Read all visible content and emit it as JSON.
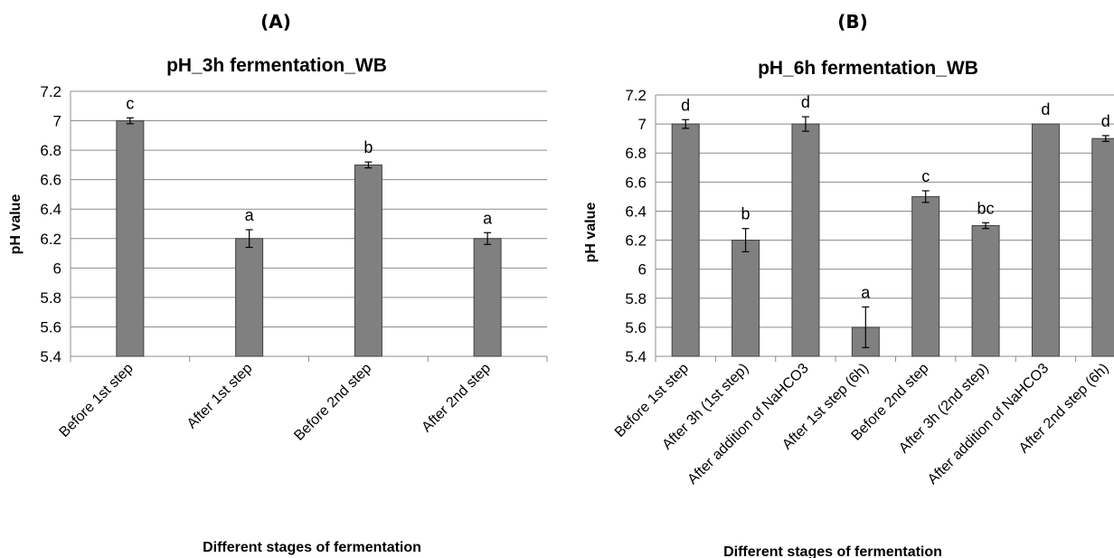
{
  "chart_data": [
    {
      "type": "bar",
      "panel_label": "(A)",
      "title": "pH_3h fermentation_WB",
      "xlabel": "Different stages of fermentation",
      "ylabel": "pH value",
      "ylim": [
        5.4,
        7.2
      ],
      "yticks": [
        "5.4",
        "5.6",
        "5.8",
        "6",
        "6.2",
        "6.4",
        "6.6",
        "6.8",
        "7",
        "7.2"
      ],
      "grid": true,
      "categories": [
        "Before 1st step",
        "After 1st step",
        "Before 2nd step",
        "After 2nd step"
      ],
      "values": [
        7.0,
        6.2,
        6.7,
        6.2
      ],
      "errors": [
        0.02,
        0.06,
        0.02,
        0.04
      ],
      "significance_letters": [
        "c",
        "a",
        "b",
        "a"
      ],
      "bar_color": "#808080"
    },
    {
      "type": "bar",
      "panel_label": "(B)",
      "title": "pH_6h fermentation_WB",
      "xlabel": "Different stages of fermentation",
      "ylabel": "pH value",
      "ylim": [
        5.4,
        7.2
      ],
      "yticks": [
        "5.4",
        "5.6",
        "5.8",
        "6",
        "6.2",
        "6.4",
        "6.6",
        "6.8",
        "7",
        "7.2"
      ],
      "grid": true,
      "categories": [
        "Before 1st step",
        "After 3h  (1st step)",
        "After addition of NaHCO3",
        "After 1st step (6h)",
        "Before 2nd step",
        "After 3h  (2nd step)",
        "After addition of NaHCO3",
        "After 2nd step (6h)"
      ],
      "values": [
        7.0,
        6.2,
        7.0,
        5.6,
        6.5,
        6.3,
        7.0,
        6.9
      ],
      "errors": [
        0.03,
        0.08,
        0.05,
        0.14,
        0.04,
        0.02,
        0.0,
        0.02
      ],
      "significance_letters": [
        "d",
        "b",
        "d",
        "a",
        "c",
        "bc",
        "d",
        "d"
      ],
      "bar_color": "#808080"
    }
  ]
}
